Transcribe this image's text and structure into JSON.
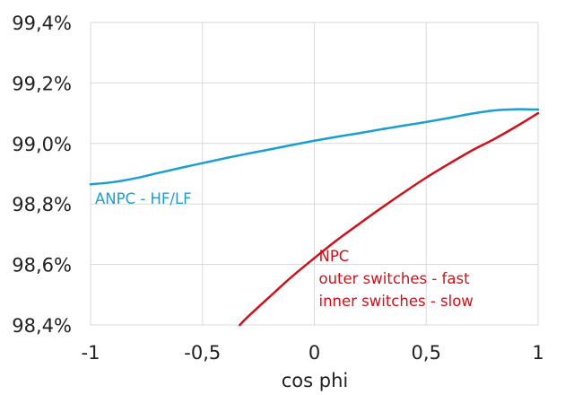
{
  "chart_data": {
    "type": "line",
    "xlabel": "cos phi",
    "ylabel": "",
    "xlim": [
      -1,
      1
    ],
    "ylim": [
      98.4,
      99.4
    ],
    "x_ticks": [
      -1,
      -0.5,
      0,
      0.5,
      1
    ],
    "x_tick_labels": [
      "-1",
      "-0,5",
      "0",
      "0,5",
      "1"
    ],
    "y_ticks": [
      98.4,
      98.6,
      98.8,
      99.0,
      99.2,
      99.4
    ],
    "y_tick_labels": [
      "98,4%",
      "98,6%",
      "98,8%",
      "99,0%",
      "99,2%",
      "99,4%"
    ],
    "grid": true,
    "colors": {
      "anpc": "#1a9fd0",
      "npc": "#d0111b",
      "grid": "#d9d9d9",
      "text": "#222222"
    },
    "series": [
      {
        "name": "ANPC - HF/LF",
        "color": "#1a9fd0",
        "x": [
          -1,
          -0.9,
          -0.8,
          -0.7,
          -0.6,
          -0.5,
          -0.4,
          -0.3,
          -0.2,
          -0.1,
          0,
          0.1,
          0.2,
          0.3,
          0.4,
          0.5,
          0.6,
          0.7,
          0.8,
          0.9,
          1
        ],
        "y": [
          98.865,
          98.872,
          98.885,
          98.902,
          98.919,
          98.935,
          98.951,
          98.966,
          98.98,
          98.995,
          99.009,
          99.022,
          99.034,
          99.047,
          99.059,
          99.071,
          99.084,
          99.098,
          99.109,
          99.113,
          99.112
        ]
      },
      {
        "name": "NPC",
        "color": "#d0111b",
        "x": [
          -0.333,
          -0.3,
          -0.2,
          -0.1,
          0,
          0.1,
          0.2,
          0.3,
          0.4,
          0.5,
          0.6,
          0.7,
          0.8,
          0.9,
          1
        ],
        "y": [
          98.4,
          98.425,
          98.493,
          98.56,
          98.621,
          98.68,
          98.734,
          98.787,
          98.838,
          98.887,
          98.932,
          98.975,
          99.013,
          99.055,
          99.1
        ]
      }
    ],
    "annotations": [
      {
        "series": "ANPC - HF/LF",
        "lines": [
          "ANPC - HF/LF"
        ],
        "x": -0.98,
        "y": 98.8
      },
      {
        "series": "NPC",
        "lines": [
          "NPC",
          "outer switches - fast",
          "inner switches - slow"
        ],
        "x": 0.02,
        "y": 98.61
      }
    ]
  }
}
